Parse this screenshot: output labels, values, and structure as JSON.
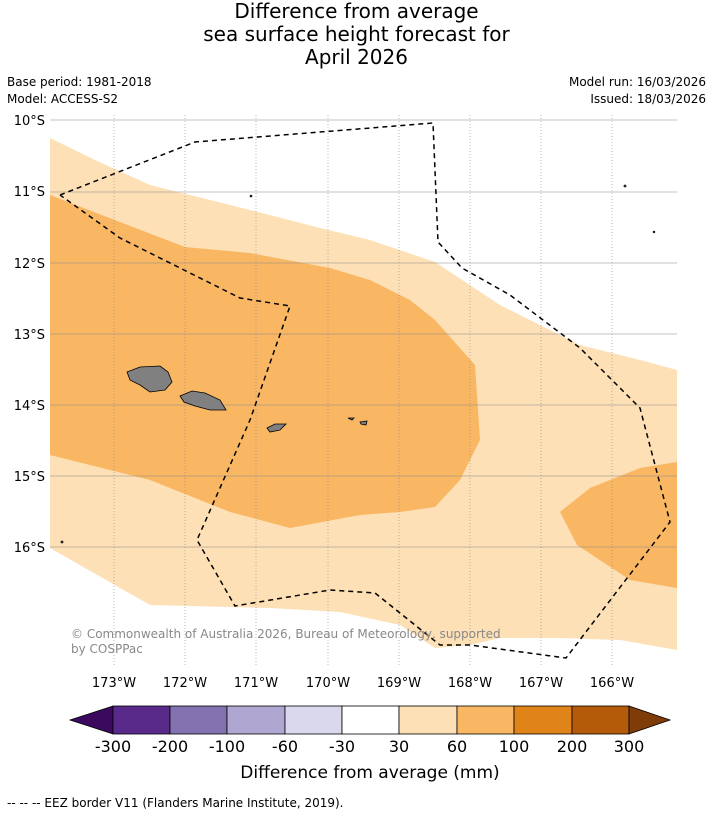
{
  "title": {
    "line1": "Difference from average",
    "line2": "sea surface height forecast for",
    "line3": "April 2026"
  },
  "meta": {
    "base_period": "Base period: 1981-2018",
    "model": "Model: ACCESS-S2",
    "model_run": "Model run: 16/03/2026",
    "issued": "Issued: 18/03/2026"
  },
  "map": {
    "lat_labels": [
      "10°S",
      "11°S",
      "12°S",
      "13°S",
      "14°S",
      "15°S",
      "16°S"
    ],
    "lon_labels": [
      "173°W",
      "172°W",
      "171°W",
      "170°W",
      "169°W",
      "168°W",
      "167°W",
      "166°W"
    ],
    "copyright_line1": "© Commonwealth of Australia 2026, Bureau of Meteorology, supported",
    "copyright_line2": "by COSPPac",
    "colors": {
      "band_30_60": "#fde0b5",
      "band_60_100": "#f9b764",
      "land": "#808080",
      "eez": "#000000",
      "grid": "#808080"
    }
  },
  "colorbar": {
    "ticks": [
      "-300",
      "-200",
      "-100",
      "-60",
      "-30",
      "30",
      "60",
      "100",
      "200",
      "300"
    ],
    "colors": [
      "#3b0a5e",
      "#5a2a8b",
      "#8472b0",
      "#b0a6d2",
      "#d9d8ec",
      "#ffffff",
      "#fde0b5",
      "#f9b764",
      "#e08419",
      "#b45b09",
      "#7f3b08"
    ],
    "label": "Difference from average (mm)"
  },
  "footer": "--  --  -- EEZ border V11 (Flanders Marine Institute, 2019)."
}
